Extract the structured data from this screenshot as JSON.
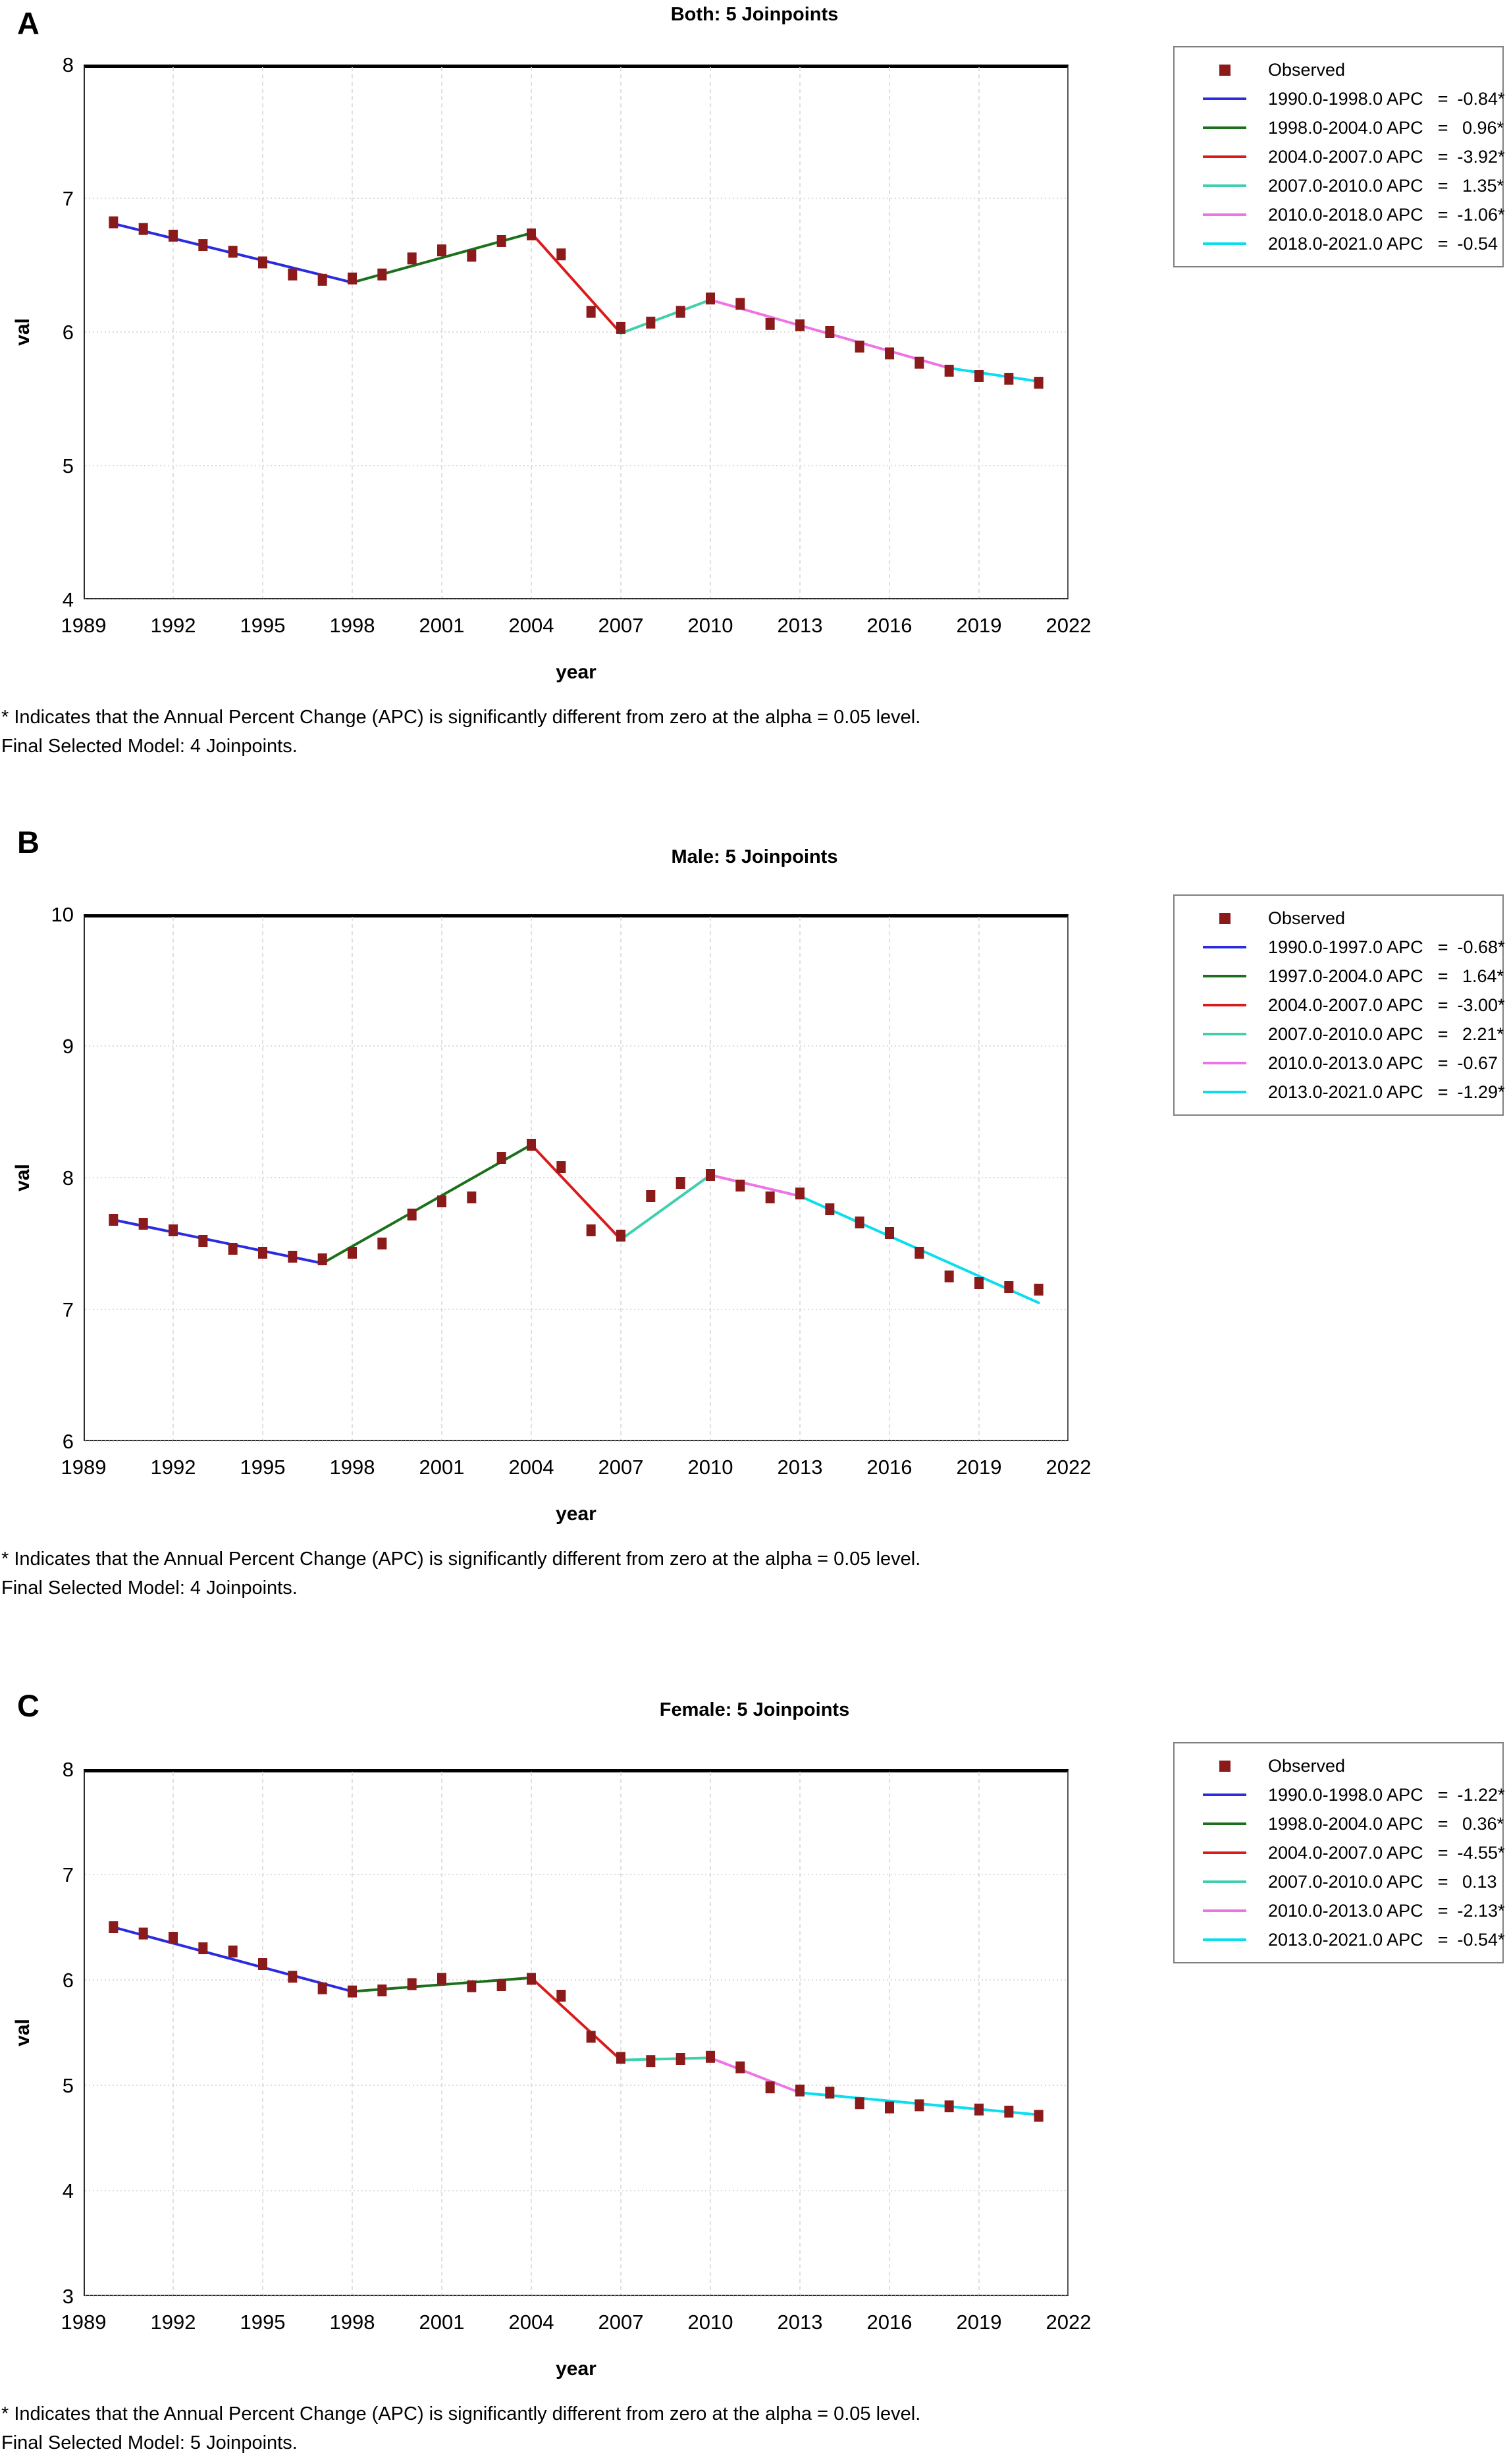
{
  "chart_data": [
    {
      "type": "line",
      "panel_label": "A",
      "title": "Both: 5 Joinpoints",
      "xlabel": "year",
      "ylabel": "val",
      "xlim": [
        1989,
        2022
      ],
      "ylim": [
        4,
        8
      ],
      "xticks": [
        1989,
        1992,
        1995,
        1998,
        2001,
        2004,
        2007,
        2010,
        2013,
        2016,
        2019,
        2022
      ],
      "yticks": [
        8,
        7,
        6,
        5,
        4
      ],
      "grid": true,
      "legend_position": "right",
      "legend_eq_sign": "=",
      "observed": {
        "label": "Observed",
        "marker_color": "#8B1A1A",
        "years": [
          1990,
          1991,
          1992,
          1993,
          1994,
          1995,
          1996,
          1997,
          1998,
          1999,
          2000,
          2001,
          2002,
          2003,
          2004,
          2005,
          2006,
          2007,
          2008,
          2009,
          2010,
          2011,
          2012,
          2013,
          2014,
          2015,
          2016,
          2017,
          2018,
          2019,
          2020,
          2021
        ],
        "values": [
          6.82,
          6.77,
          6.72,
          6.65,
          6.6,
          6.52,
          6.43,
          6.39,
          6.4,
          6.43,
          6.55,
          6.61,
          6.57,
          6.68,
          6.73,
          6.58,
          6.15,
          6.03,
          6.07,
          6.15,
          6.25,
          6.21,
          6.06,
          6.05,
          6.0,
          5.89,
          5.84,
          5.77,
          5.71,
          5.67,
          5.65,
          5.62
        ]
      },
      "segments": [
        {
          "period": "1990.0-1998.0 APC",
          "apc": "-0.84*",
          "color": "#2B2BE0",
          "points": [
            [
              1990,
              6.81
            ],
            [
              1998,
              6.37
            ]
          ]
        },
        {
          "period": "1998.0-2004.0 APC",
          "apc": " 0.96*",
          "color": "#1C701C",
          "points": [
            [
              1998,
              6.37
            ],
            [
              2004,
              6.74
            ]
          ]
        },
        {
          "period": "2004.0-2007.0 APC",
          "apc": "-3.92*",
          "color": "#DC1A1A",
          "points": [
            [
              2004,
              6.74
            ],
            [
              2007,
              5.99
            ]
          ]
        },
        {
          "period": "2007.0-2010.0 APC",
          "apc": " 1.35*",
          "color": "#3FCFAD",
          "points": [
            [
              2007,
              5.99
            ],
            [
              2010,
              6.24
            ]
          ]
        },
        {
          "period": "2010.0-2018.0 APC",
          "apc": "-1.06*",
          "color": "#EE74E6",
          "points": [
            [
              2010,
              6.24
            ],
            [
              2018,
              5.73
            ]
          ]
        },
        {
          "period": "2018.0-2021.0 APC",
          "apc": "-0.54",
          "color": "#0ADEEE",
          "points": [
            [
              2018,
              5.73
            ],
            [
              2021,
              5.63
            ]
          ]
        }
      ],
      "footnotes": [
        "* Indicates that the Annual Percent Change (APC) is significantly different from zero at the alpha = 0.05 level.",
        "Final Selected Model: 4 Joinpoints."
      ]
    },
    {
      "type": "line",
      "panel_label": "B",
      "title": "Male: 5 Joinpoints",
      "xlabel": "year",
      "ylabel": "val",
      "xlim": [
        1989,
        2022
      ],
      "ylim": [
        6,
        10
      ],
      "xticks": [
        1989,
        1992,
        1995,
        1998,
        2001,
        2004,
        2007,
        2010,
        2013,
        2016,
        2019,
        2022
      ],
      "yticks": [
        10,
        9,
        8,
        7,
        6
      ],
      "grid": true,
      "legend_position": "right",
      "legend_eq_sign": "=",
      "observed": {
        "label": "Observed",
        "marker_color": "#8B1A1A",
        "years": [
          1990,
          1991,
          1992,
          1993,
          1994,
          1995,
          1996,
          1997,
          1998,
          1999,
          2000,
          2001,
          2002,
          2003,
          2004,
          2005,
          2006,
          2007,
          2008,
          2009,
          2010,
          2011,
          2012,
          2013,
          2014,
          2015,
          2016,
          2017,
          2018,
          2019,
          2020,
          2021
        ],
        "values": [
          7.68,
          7.65,
          7.6,
          7.52,
          7.46,
          7.43,
          7.4,
          7.38,
          7.43,
          7.5,
          7.72,
          7.82,
          7.85,
          8.15,
          8.25,
          8.08,
          7.6,
          7.56,
          7.86,
          7.96,
          8.02,
          7.94,
          7.85,
          7.88,
          7.76,
          7.66,
          7.58,
          7.43,
          7.25,
          7.2,
          7.17,
          7.15
        ]
      },
      "segments": [
        {
          "period": "1990.0-1997.0 APC",
          "apc": "-0.68*",
          "color": "#2B2BE0",
          "points": [
            [
              1990,
              7.68
            ],
            [
              1997,
              7.35
            ]
          ]
        },
        {
          "period": "1997.0-2004.0 APC",
          "apc": " 1.64*",
          "color": "#1C701C",
          "points": [
            [
              1997,
              7.35
            ],
            [
              2004,
              8.25
            ]
          ]
        },
        {
          "period": "2004.0-2007.0 APC",
          "apc": "-3.00*",
          "color": "#DC1A1A",
          "points": [
            [
              2004,
              8.25
            ],
            [
              2007,
              7.53
            ]
          ]
        },
        {
          "period": "2007.0-2010.0 APC",
          "apc": " 2.21*",
          "color": "#3FCFAD",
          "points": [
            [
              2007,
              7.53
            ],
            [
              2010,
              8.02
            ]
          ]
        },
        {
          "period": "2010.0-2013.0 APC",
          "apc": "-0.67",
          "color": "#EE74E6",
          "points": [
            [
              2010,
              8.02
            ],
            [
              2013,
              7.86
            ]
          ]
        },
        {
          "period": "2013.0-2021.0 APC",
          "apc": "-1.29*",
          "color": "#0ADEEE",
          "points": [
            [
              2013,
              7.86
            ],
            [
              2021,
              7.05
            ]
          ]
        }
      ],
      "footnotes": [
        "* Indicates that the Annual Percent Change (APC) is significantly different from zero at the alpha = 0.05 level.",
        "Final Selected Model: 4 Joinpoints."
      ]
    },
    {
      "type": "line",
      "panel_label": "C",
      "title": "Female: 5 Joinpoints",
      "xlabel": "year",
      "ylabel": "val",
      "xlim": [
        1989,
        2022
      ],
      "ylim": [
        3,
        8
      ],
      "xticks": [
        1989,
        1992,
        1995,
        1998,
        2001,
        2004,
        2007,
        2010,
        2013,
        2016,
        2019,
        2022
      ],
      "yticks": [
        8,
        7,
        6,
        5,
        4,
        3
      ],
      "grid": true,
      "legend_position": "right",
      "legend_eq_sign": "=",
      "observed": {
        "label": "Observed",
        "marker_color": "#8B1A1A",
        "years": [
          1990,
          1991,
          1992,
          1993,
          1994,
          1995,
          1996,
          1997,
          1998,
          1999,
          2000,
          2001,
          2002,
          2003,
          2004,
          2005,
          2006,
          2007,
          2008,
          2009,
          2010,
          2011,
          2012,
          2013,
          2014,
          2015,
          2016,
          2017,
          2018,
          2019,
          2020,
          2021
        ],
        "values": [
          6.5,
          6.44,
          6.4,
          6.3,
          6.27,
          6.15,
          6.03,
          5.92,
          5.89,
          5.9,
          5.96,
          6.01,
          5.94,
          5.95,
          6.01,
          5.85,
          5.46,
          5.26,
          5.23,
          5.25,
          5.27,
          5.17,
          4.98,
          4.95,
          4.93,
          4.83,
          4.79,
          4.81,
          4.8,
          4.77,
          4.75,
          4.71
        ]
      },
      "segments": [
        {
          "period": "1990.0-1998.0 APC",
          "apc": "-1.22*",
          "color": "#2B2BE0",
          "points": [
            [
              1990,
              6.5
            ],
            [
              1998,
              5.89
            ]
          ]
        },
        {
          "period": "1998.0-2004.0 APC",
          "apc": " 0.36*",
          "color": "#1C701C",
          "points": [
            [
              1998,
              5.89
            ],
            [
              2004,
              6.02
            ]
          ]
        },
        {
          "period": "2004.0-2007.0 APC",
          "apc": "-4.55*",
          "color": "#DC1A1A",
          "points": [
            [
              2004,
              6.02
            ],
            [
              2007,
              5.24
            ]
          ]
        },
        {
          "period": "2007.0-2010.0 APC",
          "apc": " 0.13",
          "color": "#3FCFAD",
          "points": [
            [
              2007,
              5.24
            ],
            [
              2010,
              5.26
            ]
          ]
        },
        {
          "period": "2010.0-2013.0 APC",
          "apc": "-2.13*",
          "color": "#EE74E6",
          "points": [
            [
              2010,
              5.26
            ],
            [
              2013,
              4.93
            ]
          ]
        },
        {
          "period": "2013.0-2021.0 APC",
          "apc": "-0.54*",
          "color": "#0ADEEE",
          "points": [
            [
              2013,
              4.93
            ],
            [
              2021,
              4.72
            ]
          ]
        }
      ],
      "footnotes": [
        "* Indicates that the Annual Percent Change (APC) is significantly different from zero at the alpha = 0.05 level.",
        "Final Selected Model: 5 Joinpoints."
      ]
    }
  ]
}
